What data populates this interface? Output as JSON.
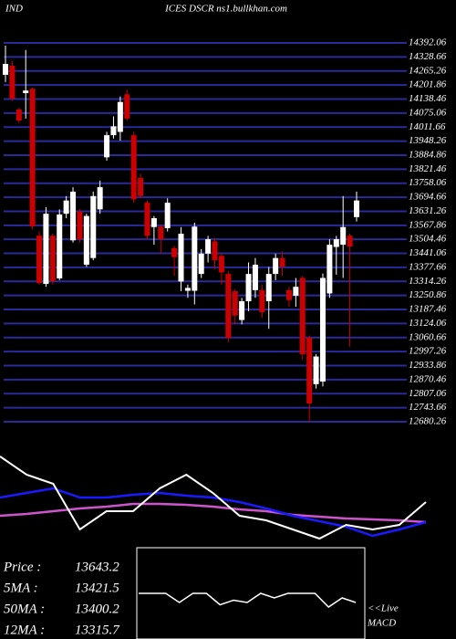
{
  "chart_data": {
    "type": "candlestick",
    "title_left": "IND",
    "title": "ICES DSCR ns1.bullkhan.com",
    "ylim": [
      12680.26,
      14392.06
    ],
    "yticks": [
      14392.06,
      14328.66,
      14265.26,
      14201.86,
      14138.46,
      14075.06,
      14011.66,
      13948.26,
      13884.86,
      13821.46,
      13758.06,
      13694.66,
      13631.26,
      13567.86,
      13504.46,
      13441.06,
      13377.66,
      13314.26,
      13250.86,
      13187.46,
      13124.06,
      13060.66,
      12997.26,
      12933.86,
      12870.46,
      12807.06,
      12743.66,
      12680.26
    ],
    "up_color": "#ffffff",
    "down_color": "#cc0000",
    "grid_color": "#2a2a9a",
    "candles": [
      [
        14248,
        14380,
        14215,
        14297
      ],
      [
        14289,
        14310,
        14130,
        14140
      ],
      [
        14091,
        14100,
        14030,
        14041
      ],
      [
        14165,
        14360,
        14050,
        14177
      ],
      [
        14185,
        14190,
        13550,
        13563
      ],
      [
        13521,
        13540,
        13300,
        13307
      ],
      [
        13303,
        13650,
        13290,
        13620
      ],
      [
        13521,
        13530,
        13300,
        13315
      ],
      [
        13328,
        13640,
        13320,
        13617
      ],
      [
        13620,
        13700,
        13600,
        13680
      ],
      [
        13500,
        13740,
        13490,
        13720
      ],
      [
        13630,
        13640,
        13490,
        13505
      ],
      [
        13390,
        13620,
        13380,
        13610
      ],
      [
        13420,
        13720,
        13410,
        13700
      ],
      [
        13640,
        13770,
        13620,
        13740
      ],
      [
        13875,
        13990,
        13860,
        13975
      ],
      [
        13975,
        14060,
        13960,
        14015
      ],
      [
        13990,
        14150,
        13950,
        14125
      ],
      [
        14160,
        14180,
        14040,
        14050
      ],
      [
        13975,
        13990,
        13670,
        13685
      ],
      [
        13782,
        13800,
        13690,
        13700
      ],
      [
        13670,
        13680,
        13505,
        13520
      ],
      [
        13560,
        13610,
        13480,
        13600
      ],
      [
        13562,
        13570,
        13440,
        13505
      ],
      [
        13555,
        13690,
        13540,
        13670
      ],
      [
        13465,
        13475,
        13340,
        13424
      ],
      [
        13314,
        13560,
        13270,
        13530
      ],
      [
        13272,
        13300,
        13240,
        13285
      ],
      [
        13272,
        13580,
        13210,
        13562
      ],
      [
        13348,
        13460,
        13330,
        13440
      ],
      [
        13440,
        13520,
        13400,
        13505
      ],
      [
        13495,
        13510,
        13370,
        13410
      ],
      [
        13430,
        13440,
        13300,
        13355
      ],
      [
        13348,
        13360,
        13040,
        13059
      ],
      [
        13270,
        13280,
        13120,
        13160
      ],
      [
        13140,
        13240,
        13120,
        13225
      ],
      [
        13225,
        13400,
        13180,
        13348
      ],
      [
        13275,
        13420,
        13240,
        13390
      ],
      [
        13275,
        13300,
        13150,
        13175
      ],
      [
        13225,
        13380,
        13100,
        13348
      ],
      [
        13348,
        13440,
        13320,
        13420
      ],
      [
        13420,
        13450,
        13340,
        13380
      ],
      [
        13275,
        13290,
        13200,
        13230
      ],
      [
        13250,
        13330,
        13200,
        13290
      ],
      [
        13330,
        13340,
        12960,
        12985
      ],
      [
        13060,
        13070,
        12680,
        12763
      ],
      [
        12850,
        12985,
        12830,
        12975
      ],
      [
        12862,
        13350,
        12840,
        13330
      ],
      [
        13260,
        13505,
        13240,
        13480
      ],
      [
        13470,
        13520,
        13345,
        13505
      ],
      [
        13480,
        13700,
        13330,
        13560
      ],
      [
        13521,
        13530,
        13020,
        13472
      ],
      [
        13605,
        13720,
        13585,
        13680
      ]
    ],
    "indicator": {
      "ylim": [
        0,
        100
      ],
      "series": [
        {
          "color": "#ffffff",
          "values": [
            95,
            75,
            65,
            15,
            35,
            35,
            60,
            75,
            55,
            30,
            25,
            15,
            5,
            20,
            15,
            20,
            45
          ]
        },
        {
          "color": "#1a1aff",
          "values": [
            50,
            55,
            60,
            50,
            50,
            53,
            55,
            52,
            50,
            45,
            38,
            30,
            24,
            18,
            8,
            15,
            23
          ]
        },
        {
          "color": "#cc55cc",
          "values": [
            30,
            32,
            35,
            38,
            40,
            43,
            43,
            42,
            40,
            37,
            35,
            31,
            29,
            27,
            26,
            25,
            23
          ]
        }
      ]
    },
    "macd": {
      "ylim": [
        -1,
        1
      ],
      "values": [
        0,
        0,
        0,
        -0.2,
        0,
        0,
        -0.25,
        -0.15,
        -0.2,
        0,
        -0.1,
        0,
        0,
        0,
        -0.3,
        -0.1,
        -0.2
      ]
    },
    "legend": [
      {
        "name": "Price   :",
        "value": 13643.2
      },
      {
        "name": "5MA  :",
        "value": 13421.5
      },
      {
        "name": "50MA :",
        "value": 13400.2
      },
      {
        "name": "12MA :",
        "value": 13315.7
      }
    ],
    "live": "<<Live",
    "macd_label": "MACD"
  }
}
